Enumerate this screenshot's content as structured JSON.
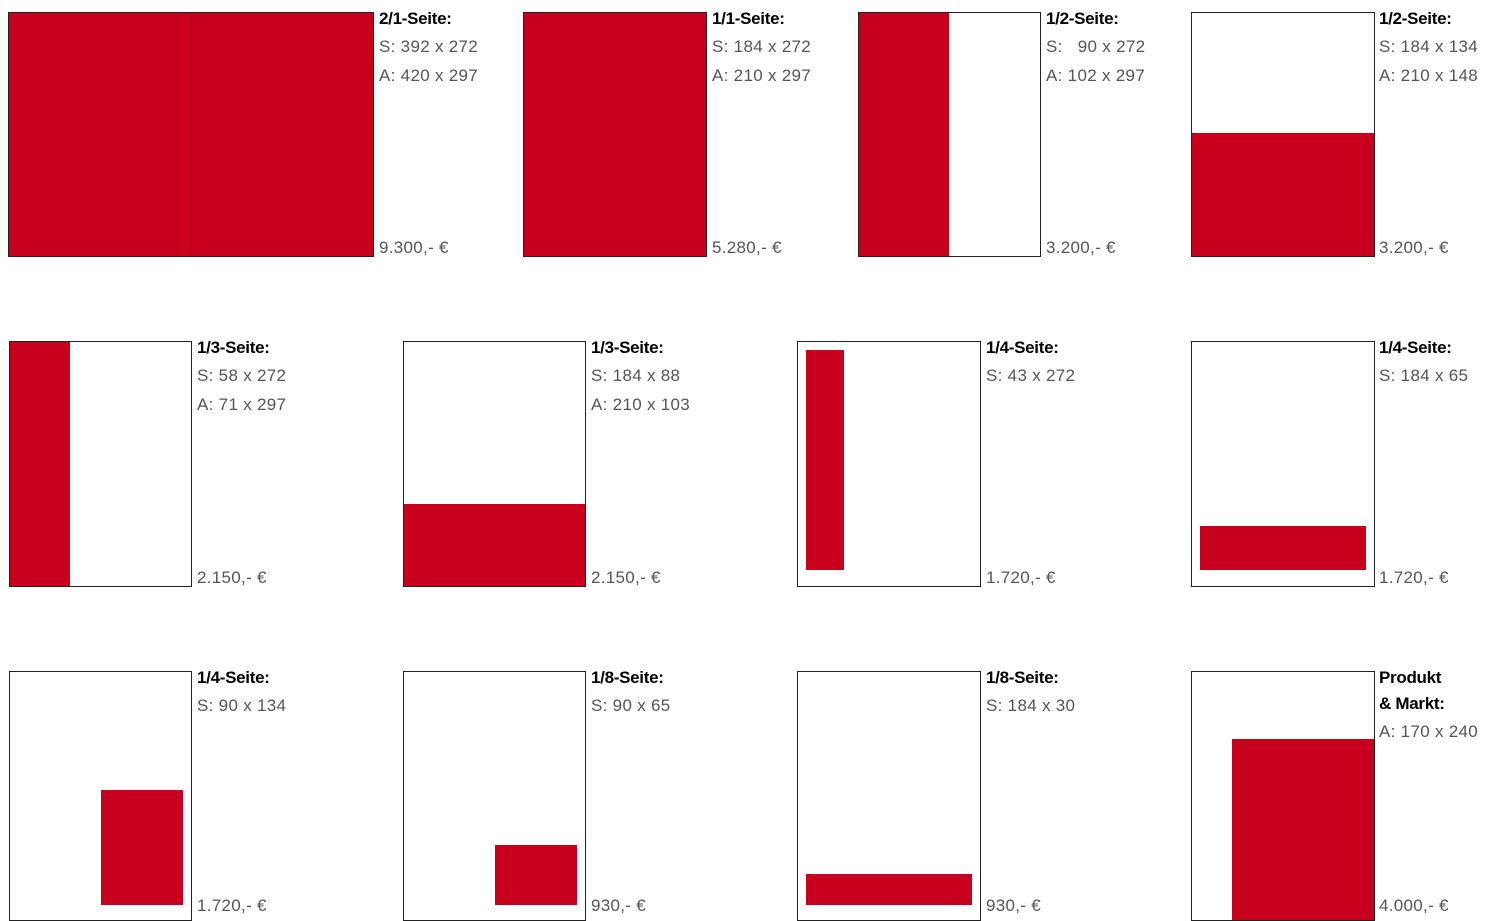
{
  "colors": {
    "ad_red": "#c8001e",
    "outline": "#222222",
    "title_text": "#000000",
    "detail_text": "#555555"
  },
  "formats": [
    {
      "title": "2/1-Seite:",
      "s": "S: 392 x 272",
      "a": "A: 420 x 297",
      "price": "9.300,- €"
    },
    {
      "title": "1/1-Seite:",
      "s": "S: 184 x 272",
      "a": "A: 210 x 297",
      "price": "5.280,- €"
    },
    {
      "title": "1/2-Seite:",
      "s": "S:   90 x 272",
      "a": "A: 102 x 297",
      "price": "3.200,- €"
    },
    {
      "title": "1/2-Seite:",
      "s": "S: 184 x 134",
      "a": "A: 210 x 148",
      "price": "3.200,- €"
    },
    {
      "title": "1/3-Seite:",
      "s": "S: 58 x 272",
      "a": "A: 71 x 297",
      "price": "2.150,- €"
    },
    {
      "title": "1/3-Seite:",
      "s": "S: 184 x 88",
      "a": "A: 210 x 103",
      "price": "2.150,- €"
    },
    {
      "title": "1/4-Seite:",
      "s": "S: 43 x 272",
      "price": "1.720,- €"
    },
    {
      "title": "1/4-Seite:",
      "s": "S: 184 x 65",
      "price": "1.720,- €"
    },
    {
      "title": "1/4-Seite:",
      "s": "S: 90 x 134",
      "price": "1.720,- €"
    },
    {
      "title": "1/8-Seite:",
      "s": "S: 90 x 65",
      "price": "930,- €"
    },
    {
      "title": "1/8-Seite:",
      "s": "S: 184 x 30",
      "price": "930,- €"
    },
    {
      "title_line1": "Produkt",
      "title_line2": "& Markt:",
      "a": "A: 170 x 240",
      "price": "4.000,- €"
    }
  ]
}
